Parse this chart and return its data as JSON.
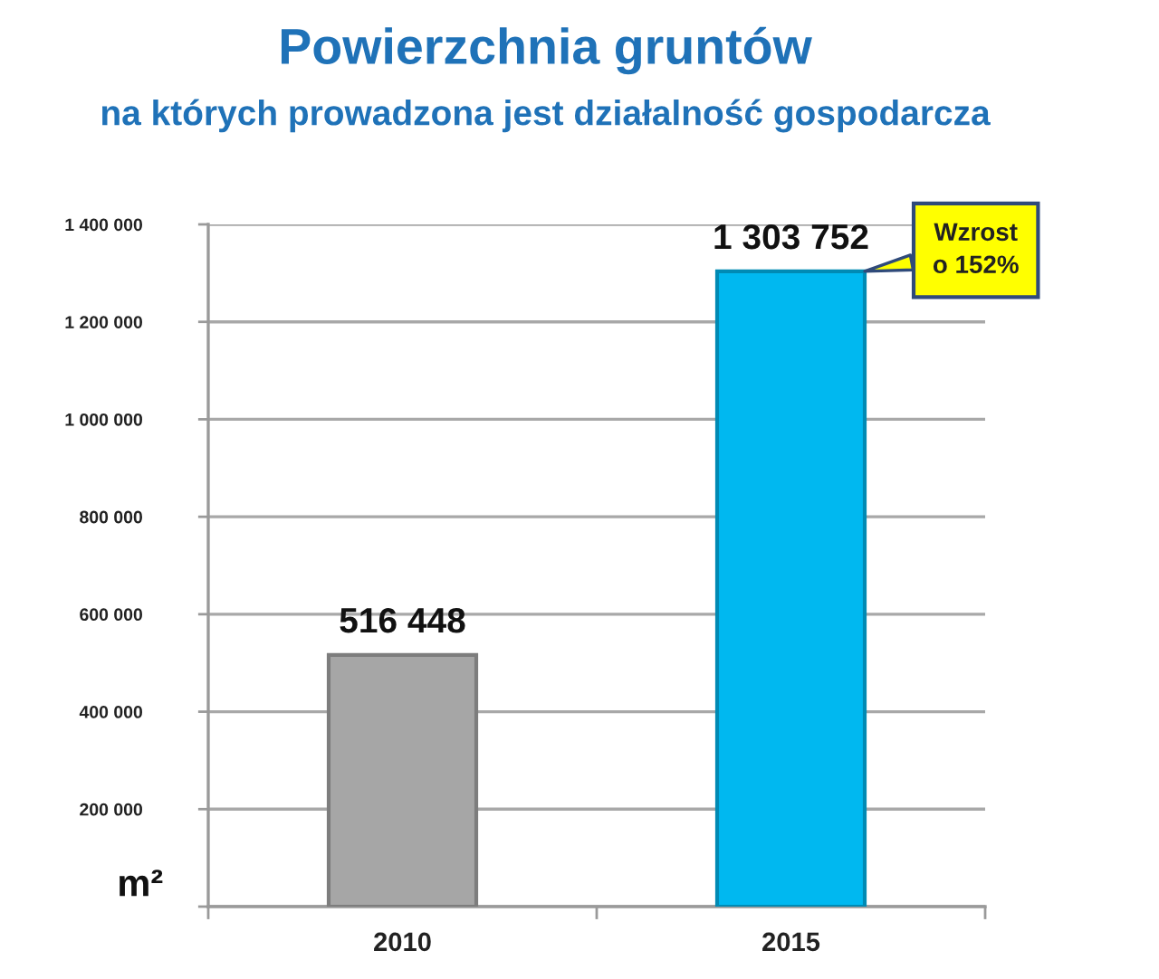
{
  "chart_data": {
    "type": "bar",
    "title": "Powierzchnia gruntów",
    "subtitle": "na których prowadzona jest działalność gospodarcza",
    "ylabel": "m²",
    "categories": [
      "2010",
      "2015"
    ],
    "values": [
      516448,
      1303752
    ],
    "colors": [
      "#a6a6a6",
      "#00b8f0"
    ],
    "value_labels": [
      "516 448",
      "1 303 752"
    ],
    "ylim": [
      0,
      1400000
    ],
    "yticks": [
      {
        "value": 0,
        "label": null
      },
      {
        "value": 200000,
        "label": "200 000"
      },
      {
        "value": 400000,
        "label": "400 000"
      },
      {
        "value": 600000,
        "label": "600 000"
      },
      {
        "value": 800000,
        "label": "800 000"
      },
      {
        "value": 1000000,
        "label": "1 000 000"
      },
      {
        "value": 1200000,
        "label": "1 200 000"
      },
      {
        "value": 1400000,
        "label": "1 400 000"
      }
    ],
    "grid": "y",
    "annotations": [
      "Wzrost\no 152%"
    ]
  }
}
